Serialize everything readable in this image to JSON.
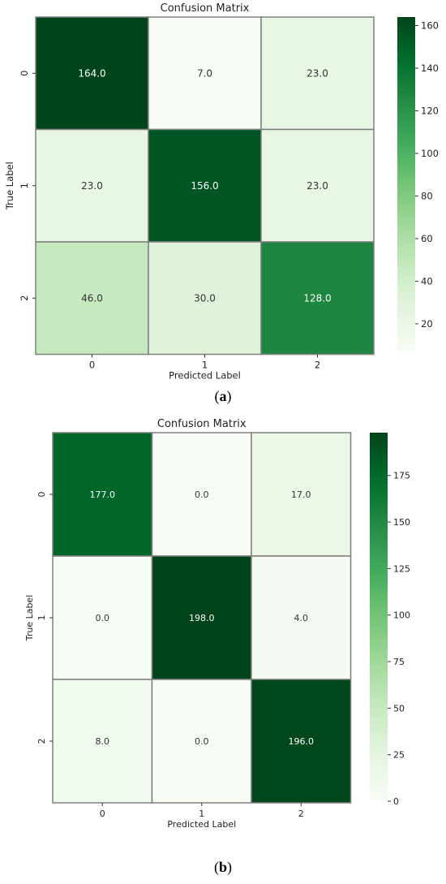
{
  "chart_data": [
    {
      "type": "heatmap",
      "title": "Confusion Matrix",
      "xlabel": "Predicted Label",
      "ylabel": "True Label",
      "x_categories": [
        "0",
        "1",
        "2"
      ],
      "y_categories": [
        "0",
        "1",
        "2"
      ],
      "values": [
        [
          164.0,
          7.0,
          23.0
        ],
        [
          23.0,
          156.0,
          23.0
        ],
        [
          46.0,
          30.0,
          128.0
        ]
      ],
      "cell_labels": [
        [
          "164.0",
          "7.0",
          "23.0"
        ],
        [
          "23.0",
          "156.0",
          "23.0"
        ],
        [
          "46.0",
          "30.0",
          "128.0"
        ]
      ],
      "colorbar": {
        "range": [
          7,
          164
        ],
        "ticks": [
          20,
          40,
          60,
          80,
          100,
          120,
          140,
          160
        ],
        "tick_labels": [
          "20",
          "40",
          "60",
          "80",
          "100",
          "120",
          "140",
          "160"
        ]
      },
      "colormap": "Greens",
      "caption": "a"
    },
    {
      "type": "heatmap",
      "title": "Confusion Matrix",
      "xlabel": "Predicted Label",
      "ylabel": "True Label",
      "x_categories": [
        "0",
        "1",
        "2"
      ],
      "y_categories": [
        "0",
        "1",
        "2"
      ],
      "values": [
        [
          177.0,
          0.0,
          17.0
        ],
        [
          0.0,
          198.0,
          4.0
        ],
        [
          8.0,
          0.0,
          196.0
        ]
      ],
      "cell_labels": [
        [
          "177.0",
          "0.0",
          "17.0"
        ],
        [
          "0.0",
          "198.0",
          "4.0"
        ],
        [
          "8.0",
          "0.0",
          "196.0"
        ]
      ],
      "colorbar": {
        "range": [
          0,
          198
        ],
        "ticks": [
          0,
          25,
          50,
          75,
          100,
          125,
          150,
          175
        ],
        "tick_labels": [
          "0",
          "25",
          "50",
          "75",
          "100",
          "125",
          "150",
          "175"
        ]
      },
      "colormap": "Greens",
      "caption": "b"
    }
  ],
  "colors": {
    "cmap_low": "#f7fcf5",
    "cmap_mid": "#74c476",
    "cmap_high": "#00441b",
    "cell_border": "#808080",
    "text_on_dark": "#ffffff",
    "text_on_light": "#333333"
  }
}
